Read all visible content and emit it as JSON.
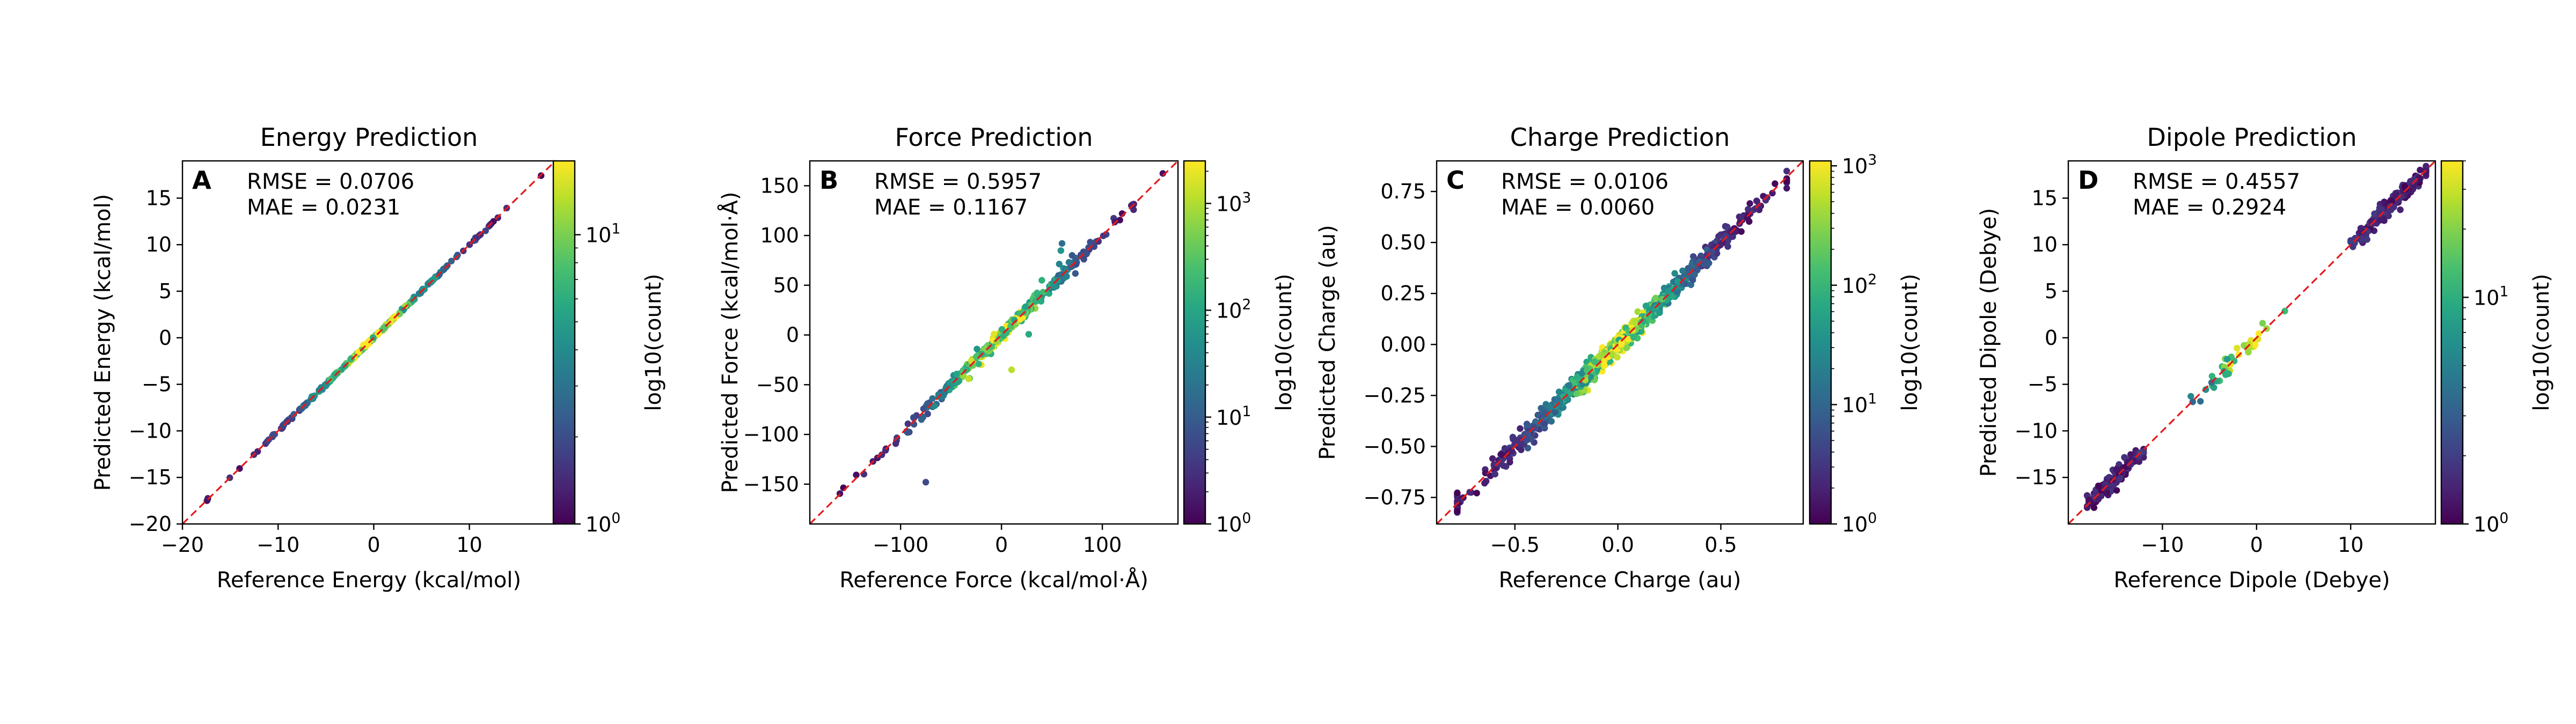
{
  "figure": {
    "panels": [
      {
        "letter": "A",
        "title": "Energy Prediction",
        "xlabel": "Reference Energy (kcal/mol)",
        "ylabel": "Predicted Energy (kcal/mol)",
        "rmse_text": "RMSE = 0.0706",
        "mae_text": "MAE = 0.0231",
        "colorbar_label": "log10(count)"
      },
      {
        "letter": "B",
        "title": "Force Prediction",
        "xlabel": "Reference Force (kcal/mol·Å)",
        "ylabel": "Predicted Force (kcal/mol·Å)",
        "rmse_text": "RMSE = 0.5957",
        "mae_text": "MAE = 0.1167",
        "colorbar_label": "log10(count)"
      },
      {
        "letter": "C",
        "title": "Charge Prediction",
        "xlabel": "Reference Charge (au)",
        "ylabel": "Predicted Charge (au)",
        "rmse_text": "RMSE = 0.0106",
        "mae_text": "MAE = 0.0060",
        "colorbar_label": "log10(count)"
      },
      {
        "letter": "D",
        "title": "Dipole Prediction",
        "xlabel": "Reference Dipole (Debye)",
        "ylabel": "Predicted Dipole (Debye)",
        "rmse_text": "RMSE = 0.4557",
        "mae_text": "MAE = 0.2924",
        "colorbar_label": "log10(count)"
      }
    ]
  },
  "chart_data": [
    {
      "type": "scatter",
      "title": "Energy Prediction",
      "xlabel": "Reference Energy (kcal/mol)",
      "ylabel": "Predicted Energy (kcal/mol)",
      "xlim": [
        -20,
        19
      ],
      "ylim": [
        -20,
        19
      ],
      "x_ticks": [
        -20,
        -10,
        0,
        10
      ],
      "y_ticks": [
        -20,
        -15,
        -10,
        -5,
        0,
        5,
        10,
        15
      ],
      "colorbar": {
        "label": "log10(count)",
        "scale": "log",
        "range": [
          1,
          18
        ],
        "ticks": [
          "10^0",
          "10^1"
        ]
      },
      "reference_line": "y = x (red dashed)",
      "rmse": 0.0706,
      "mae": 0.0231,
      "x_range_of_points": [
        -19,
        17.5
      ],
      "points_note": "hexbin along y = x; densest near 0"
    },
    {
      "type": "scatter",
      "title": "Force Prediction",
      "xlabel": "Reference Force (kcal/mol·Å)",
      "ylabel": "Predicted Force (kcal/mol·Å)",
      "xlim": [
        -190,
        175
      ],
      "ylim": [
        -190,
        175
      ],
      "x_ticks": [
        -100,
        0,
        100
      ],
      "y_ticks": [
        -150,
        -100,
        -50,
        0,
        50,
        100,
        150
      ],
      "colorbar": {
        "label": "log10(count)",
        "scale": "log",
        "range": [
          1,
          2500
        ],
        "ticks": [
          "10^0",
          "10^1",
          "10^2",
          "10^3"
        ]
      },
      "reference_line": "y = x (red dashed)",
      "rmse": 0.5957,
      "mae": 0.1167,
      "x_range_of_points": [
        -180,
        160
      ],
      "outliers": [
        [
          -75,
          -148
        ],
        [
          10,
          -35
        ],
        [
          60,
          92
        ],
        [
          70,
          80
        ],
        [
          -20,
          -30
        ],
        [
          40,
          55
        ]
      ],
      "points_note": "hexbin along y = x; densest near 0"
    },
    {
      "type": "scatter",
      "title": "Charge Prediction",
      "xlabel": "Reference Charge (au)",
      "ylabel": "Predicted Charge (au)",
      "xlim": [
        -0.88,
        0.9
      ],
      "ylim": [
        -0.88,
        0.9
      ],
      "x_ticks": [
        -0.5,
        0.0,
        0.5
      ],
      "y_ticks": [
        -0.75,
        -0.5,
        -0.25,
        0.0,
        0.25,
        0.5,
        0.75
      ],
      "colorbar": {
        "label": "log10(count)",
        "scale": "log",
        "range": [
          1,
          1100
        ],
        "ticks": [
          "10^0",
          "10^1",
          "10^2",
          "10^3"
        ]
      },
      "reference_line": "y = x (red dashed)",
      "rmse": 0.0106,
      "mae": 0.006,
      "x_range_of_points": [
        -0.78,
        0.82
      ],
      "points_note": "hexbin band along y = x"
    },
    {
      "type": "scatter",
      "title": "Dipole Prediction",
      "xlabel": "Reference Dipole (Debye)",
      "ylabel": "Predicted Dipole (Debye)",
      "xlim": [
        -20,
        19
      ],
      "ylim": [
        -20,
        19
      ],
      "x_ticks": [
        -10,
        0,
        10
      ],
      "y_ticks": [
        -15,
        -10,
        -5,
        0,
        5,
        10,
        15
      ],
      "colorbar": {
        "label": "log10(count)",
        "scale": "log",
        "range": [
          1,
          40
        ],
        "ticks": [
          "10^0",
          "10^1"
        ]
      },
      "reference_line": "y = x (red dashed)",
      "rmse": 0.4557,
      "mae": 0.2924,
      "clusters": [
        {
          "x_range": [
            -18,
            -12
          ],
          "center": [
            -15,
            -15
          ]
        },
        {
          "x_range": [
            -7,
            3
          ],
          "center": [
            -2,
            -2
          ]
        },
        {
          "x_range": [
            10,
            18
          ],
          "center": [
            14,
            14
          ]
        }
      ],
      "points_note": "three hexbin clusters along y = x"
    }
  ]
}
